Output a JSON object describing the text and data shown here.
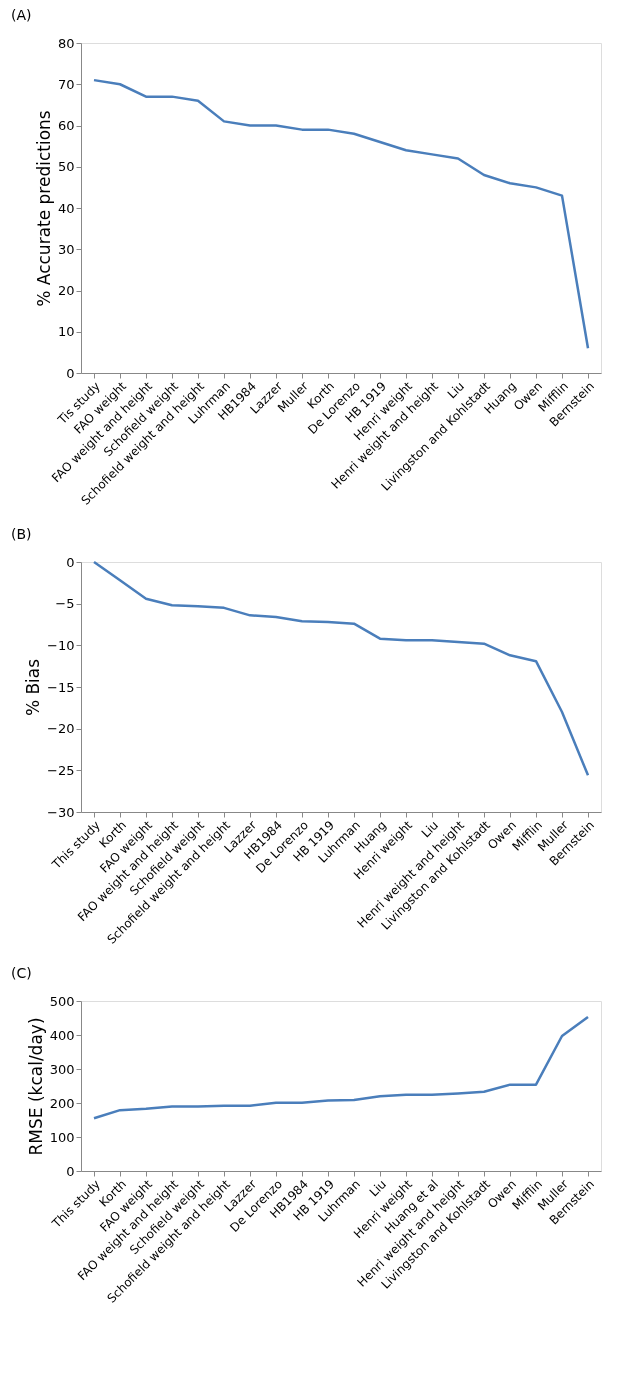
{
  "chart_data": [
    {
      "type": "line",
      "title": "(A)",
      "ylabel": "% Accurate predictions",
      "categories": [
        "Tis study",
        "FAO weight",
        "FAO weight and height",
        "Schofield weight",
        "Schofield weight and height",
        "Luhrman",
        "HB1984",
        "Lazzer",
        "Muller",
        "Korth",
        "De Lorenzo",
        "HB 1919",
        "Henri weight",
        "Henri weight and height",
        "Liu",
        "Livingston and Kohlstadt",
        "Huang",
        "Owen",
        "Mifflin",
        "Bernstein"
      ],
      "series": [
        {
          "color": "#4a7ebb",
          "values": [
            71,
            70,
            67,
            67,
            66,
            61,
            60,
            60,
            59,
            59,
            58,
            56,
            54,
            53,
            52,
            48,
            46,
            45,
            43,
            6
          ]
        }
      ],
      "ylim": [
        0,
        80
      ],
      "yticks": [
        0,
        10,
        20,
        30,
        40,
        50,
        60,
        70,
        80
      ],
      "grid": false,
      "legend": false,
      "marker": "none",
      "line_style": "solid"
    },
    {
      "type": "line",
      "title": "(B)",
      "ylabel": "% Bias",
      "categories": [
        "This study",
        "Korth",
        "FAO weight",
        "FAO weight and height",
        "Schofield weight",
        "Schofield weight and height",
        "Lazzer",
        "HB1984",
        "De Lorenzo",
        "HB 1919",
        "Luhrman",
        "Huang",
        "Henri weight",
        "Liu",
        "Henri weight and height",
        "Livingston and Kohlstadt",
        "Owen",
        "Mifflin",
        "Muller",
        "Bernstein"
      ],
      "series": [
        {
          "color": "#4a7ebb",
          "values": [
            0,
            -2.2,
            -4.4,
            -5.2,
            -5.3,
            -5.5,
            -6.4,
            -6.6,
            -7.1,
            -7.2,
            -7.4,
            -9.2,
            -9.4,
            -9.4,
            -9.6,
            -9.8,
            -11.2,
            -11.9,
            -18,
            -25.6
          ]
        }
      ],
      "ylim": [
        -30,
        0
      ],
      "yticks": [
        -30,
        -25,
        -20,
        -15,
        -10,
        -5,
        0
      ],
      "grid": false,
      "legend": false,
      "marker": "none",
      "line_style": "solid"
    },
    {
      "type": "line",
      "title": "(C)",
      "ylabel": "RMSE  (kcal/day)",
      "categories": [
        "This study",
        "Korth",
        "FAO weight",
        "FAO weight and height",
        "Schofield weight",
        "Schofield weight and height",
        "Lazzer",
        "De Lorenzo",
        "HB1984",
        "HB 1919",
        "Luhrman",
        "Liu",
        "Henri weight",
        "Huang et al",
        "Henri weight and height",
        "Livingston and Kohlstadt",
        "Owen",
        "Mifflin",
        "Muller",
        "Bernstein"
      ],
      "series": [
        {
          "color": "#4a7ebb",
          "values": [
            155,
            179,
            183,
            190,
            190,
            192,
            192,
            201,
            201,
            207,
            209,
            220,
            224,
            224,
            228,
            233,
            254,
            254,
            397,
            453
          ]
        }
      ],
      "ylim": [
        0,
        500
      ],
      "yticks": [
        0,
        100,
        200,
        300,
        400,
        500
      ],
      "grid": false,
      "legend": false,
      "marker": "none",
      "line_style": "solid"
    }
  ]
}
